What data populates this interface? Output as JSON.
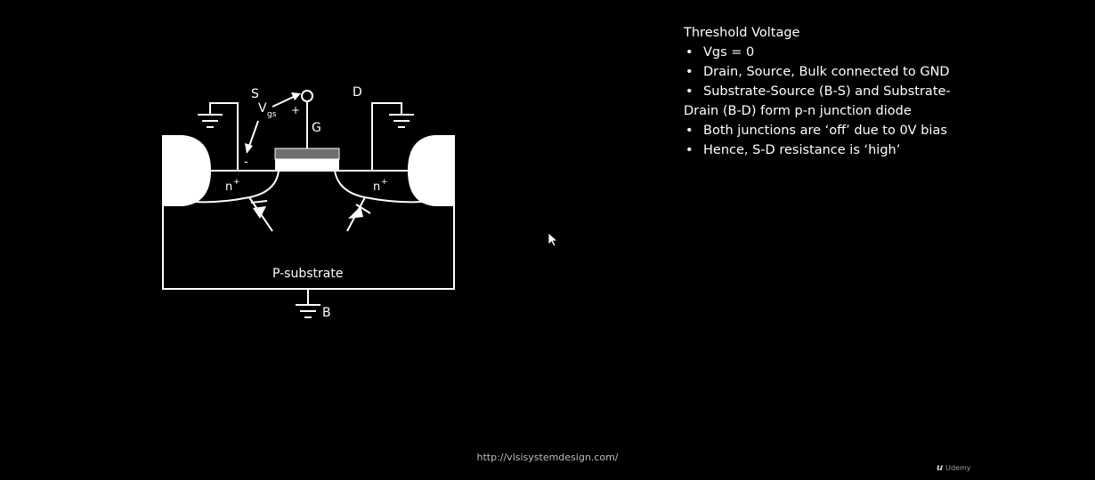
{
  "diagram": {
    "labels": {
      "source": "S",
      "drain": "D",
      "gate": "G",
      "bulk": "B",
      "vgs_main": "V",
      "vgs_sub": "gs",
      "plus": "+",
      "minus": "-",
      "n_plus_left": "n",
      "n_plus_right": "n",
      "superscript_plus": "+",
      "substrate": "P-substrate"
    }
  },
  "notes": {
    "title": "Threshold Voltage",
    "bullets": [
      "Vgs = 0",
      "Drain, Source, Bulk connected to GND",
      "Substrate-Source (B-S) and Substrate-",
      "Both junctions are ‘off’ due to 0V bias",
      "Hence, S-D resistance is ‘high’"
    ],
    "bullet3_continuation": "Drain (B-D) form p-n junction diode"
  },
  "footer": {
    "url": "http://vlsisystemdesign.com/",
    "brand": "Udemy",
    "brand_mark": "u"
  },
  "colors": {
    "background": "#000000",
    "stroke": "#ffffff",
    "gate_oxide": "#ffffff",
    "gate_metal": "#6e6e6e"
  }
}
